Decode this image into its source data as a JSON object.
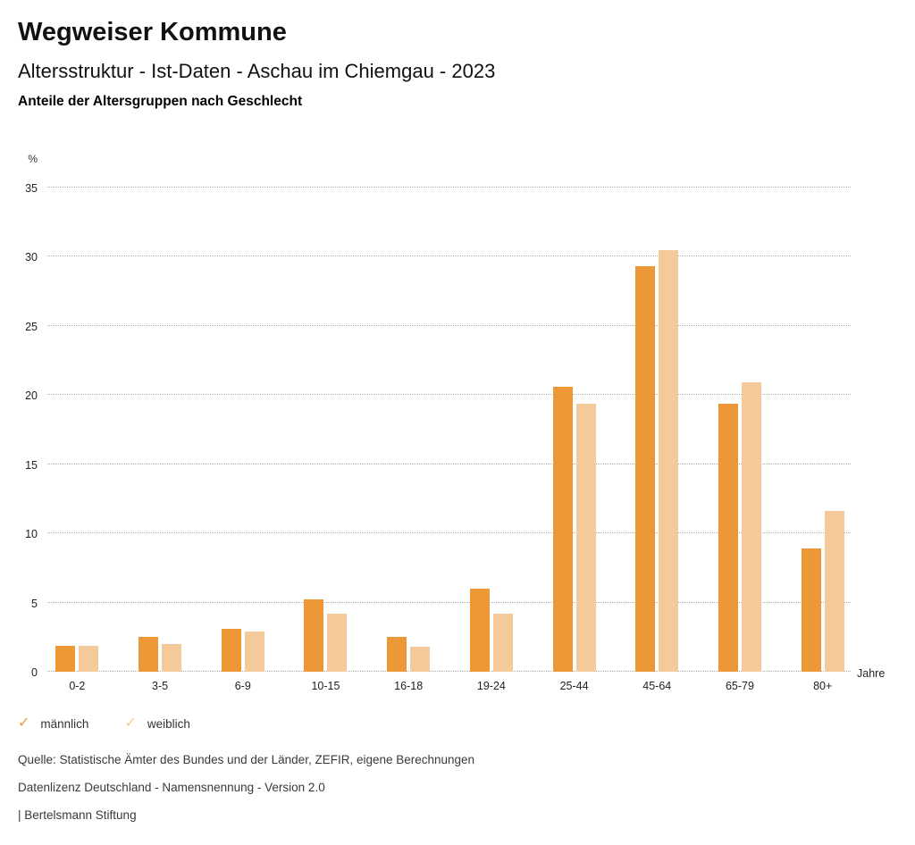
{
  "header": {
    "title": "Wegweiser Kommune",
    "subtitle": "Altersstruktur - Ist-Daten - Aschau im Chiemgau - 2023",
    "caption": "Anteile der Altersgruppen nach Geschlecht"
  },
  "chart": {
    "y_unit_label": "%",
    "x_unit_label": "Jahre",
    "yticks": [
      35,
      30,
      25,
      20,
      15,
      10,
      5,
      0
    ],
    "ymax": 35
  },
  "chart_data": {
    "type": "bar",
    "title": "Anteile der Altersgruppen nach Geschlecht",
    "categories": [
      "0-2",
      "3-5",
      "6-9",
      "10-15",
      "16-18",
      "19-24",
      "25-44",
      "45-64",
      "65-79",
      "80+"
    ],
    "series": [
      {
        "name": "männlich",
        "color": "#ED9836",
        "values": [
          1.9,
          2.5,
          3.1,
          5.2,
          2.5,
          6.0,
          20.6,
          29.3,
          19.4,
          8.9
        ]
      },
      {
        "name": "weiblich",
        "color": "#F5CA9B",
        "values": [
          1.9,
          2.0,
          2.9,
          4.2,
          1.8,
          4.2,
          19.4,
          30.5,
          20.9,
          11.6
        ]
      }
    ],
    "xlabel": "Jahre",
    "ylabel": "%",
    "ylim": [
      0,
      35
    ],
    "grid": "horizontal-dotted",
    "legend_position": "bottom-left"
  },
  "legend": {
    "items": [
      {
        "label": "männlich",
        "color": "#ED9836",
        "icon": "check-icon"
      },
      {
        "label": "weiblich",
        "color": "#F5CA9B",
        "icon": "check-icon"
      }
    ],
    "check_glyph": "✓"
  },
  "footer": {
    "source": "Quelle: Statistische Ämter des Bundes und der Länder, ZEFIR, eigene Berechnungen",
    "license": "Datenlizenz Deutschland - Namensnennung - Version 2.0",
    "publisher": "| Bertelsmann Stiftung"
  }
}
